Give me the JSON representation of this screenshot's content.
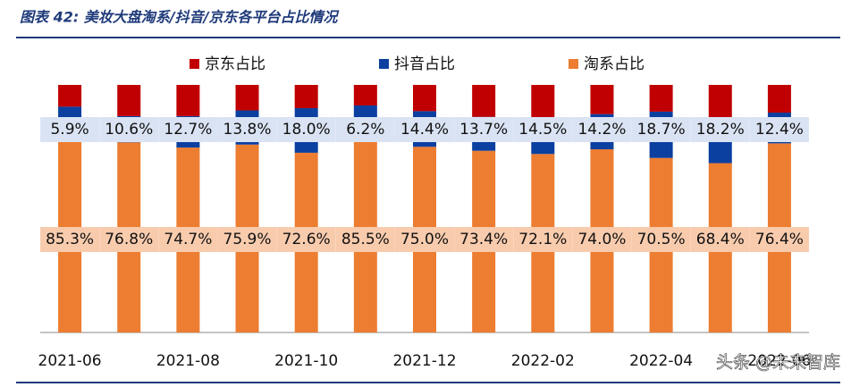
{
  "chart_data": {
    "type": "stacked_bar",
    "title": "图表 42: 美妆大盘淘系/抖音/京东各平台占比情况",
    "categories": [
      "2021-06",
      null,
      "2021-08",
      null,
      "2021-10",
      null,
      "2021-12",
      null,
      "2022-02",
      null,
      "2022-04",
      null,
      "2022-06"
    ],
    "ylim": [
      0,
      100
    ],
    "series": [
      {
        "name": "京东占比",
        "color": "#c00000",
        "values": [
          8.8,
          12.6,
          12.6,
          10.3,
          9.4,
          8.3,
          10.6,
          12.9,
          13.4,
          11.8,
          10.8,
          13.4,
          11.2
        ]
      },
      {
        "name": "抖音占比",
        "color": "#0b3fa0",
        "values": [
          5.9,
          10.6,
          12.7,
          13.8,
          18.0,
          6.2,
          14.4,
          13.7,
          14.5,
          14.2,
          18.7,
          18.2,
          12.4
        ],
        "value_labels": [
          "5.9%",
          "10.6%",
          "12.7%",
          "13.8%",
          "18.0%",
          "6.2%",
          "14.4%",
          "13.7%",
          "14.5%",
          "14.2%",
          "18.7%",
          "18.2%",
          "12.4%"
        ]
      },
      {
        "name": "淘系占比",
        "color": "#ed7d31",
        "values": [
          85.3,
          76.8,
          74.7,
          75.9,
          72.6,
          85.5,
          75.0,
          73.4,
          72.1,
          74.0,
          70.5,
          68.4,
          76.4
        ],
        "value_labels": [
          "85.3%",
          "76.8%",
          "74.7%",
          "75.9%",
          "72.6%",
          "85.5%",
          "75.0%",
          "73.4%",
          "72.1%",
          "74.0%",
          "70.5%",
          "68.4%",
          "76.4%"
        ]
      }
    ],
    "watermark": "头条 @未来智库"
  }
}
